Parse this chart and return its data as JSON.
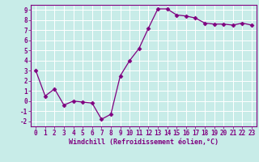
{
  "x": [
    0,
    1,
    2,
    3,
    4,
    5,
    6,
    7,
    8,
    9,
    10,
    11,
    12,
    13,
    14,
    15,
    16,
    17,
    18,
    19,
    20,
    21,
    22,
    23
  ],
  "y": [
    3.0,
    0.5,
    1.2,
    -0.4,
    0.0,
    -0.1,
    -0.2,
    -1.8,
    -1.3,
    2.5,
    4.0,
    5.2,
    7.2,
    9.1,
    9.1,
    8.5,
    8.4,
    8.2,
    7.7,
    7.6,
    7.6,
    7.5,
    7.7,
    7.5
  ],
  "line_color": "#800080",
  "marker": "D",
  "marker_size": 2.5,
  "bg_color": "#c8ece8",
  "grid_color": "#ffffff",
  "xlabel": "Windchill (Refroidissement éolien,°C)",
  "xlim": [
    -0.5,
    23.5
  ],
  "ylim": [
    -2.5,
    9.5
  ],
  "yticks": [
    -2,
    -1,
    0,
    1,
    2,
    3,
    4,
    5,
    6,
    7,
    8,
    9
  ],
  "xticks": [
    0,
    1,
    2,
    3,
    4,
    5,
    6,
    7,
    8,
    9,
    10,
    11,
    12,
    13,
    14,
    15,
    16,
    17,
    18,
    19,
    20,
    21,
    22,
    23
  ],
  "tick_color": "#800080",
  "label_color": "#800080",
  "spine_color": "#800080",
  "font_size": 5.5,
  "label_font_size": 6.0
}
